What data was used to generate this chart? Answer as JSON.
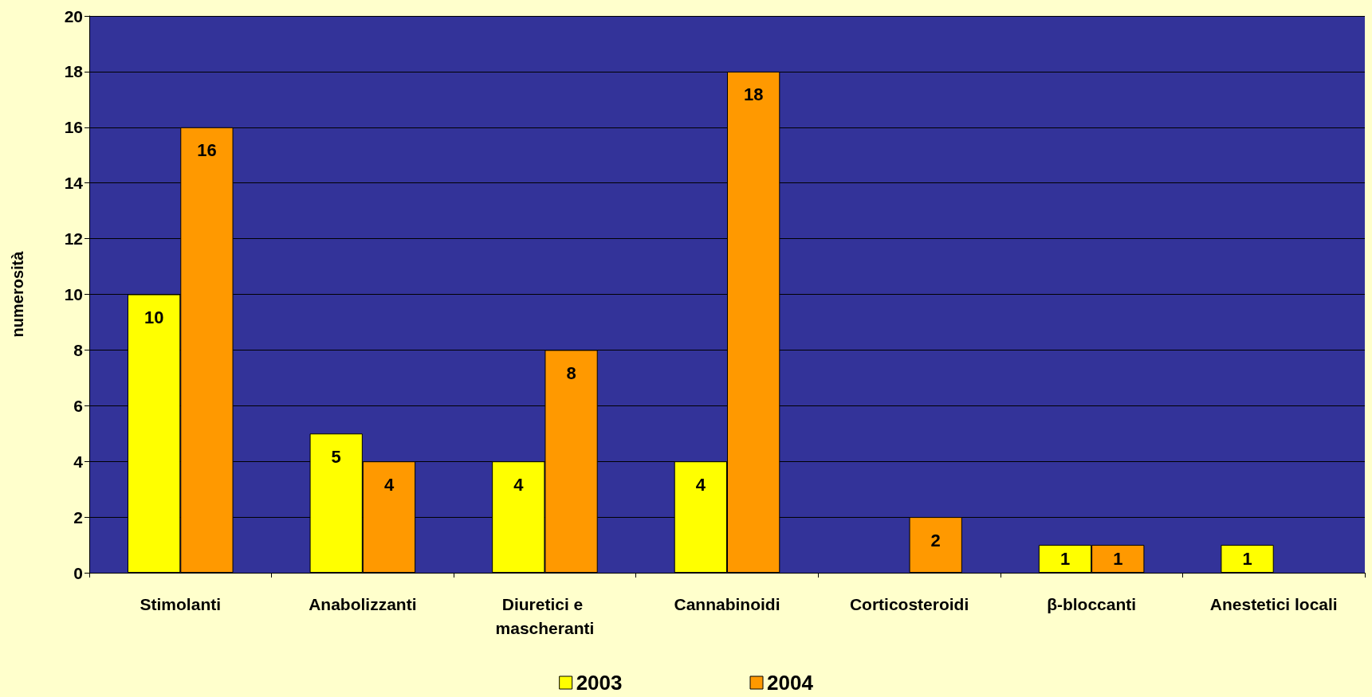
{
  "chart_data": {
    "type": "bar",
    "ylabel": "numerosità",
    "categories": [
      "Stimolanti",
      "Anabolizzanti",
      "Diuretici e mascheranti",
      "Cannabinoidi",
      "Corticosteroidi",
      "β-bloccanti",
      "Anestetici locali"
    ],
    "series": [
      {
        "name": "2003",
        "color": "#ffff00",
        "values": [
          10,
          5,
          4,
          4,
          null,
          1,
          1
        ]
      },
      {
        "name": "2004",
        "color": "#ff9900",
        "values": [
          16,
          4,
          8,
          18,
          2,
          1,
          null
        ]
      }
    ],
    "ylim": [
      0,
      20
    ],
    "yticks": [
      0,
      2,
      4,
      6,
      8,
      10,
      12,
      14,
      16,
      18,
      20
    ],
    "grid": "y",
    "legend": "bottom",
    "data_labels": true
  }
}
